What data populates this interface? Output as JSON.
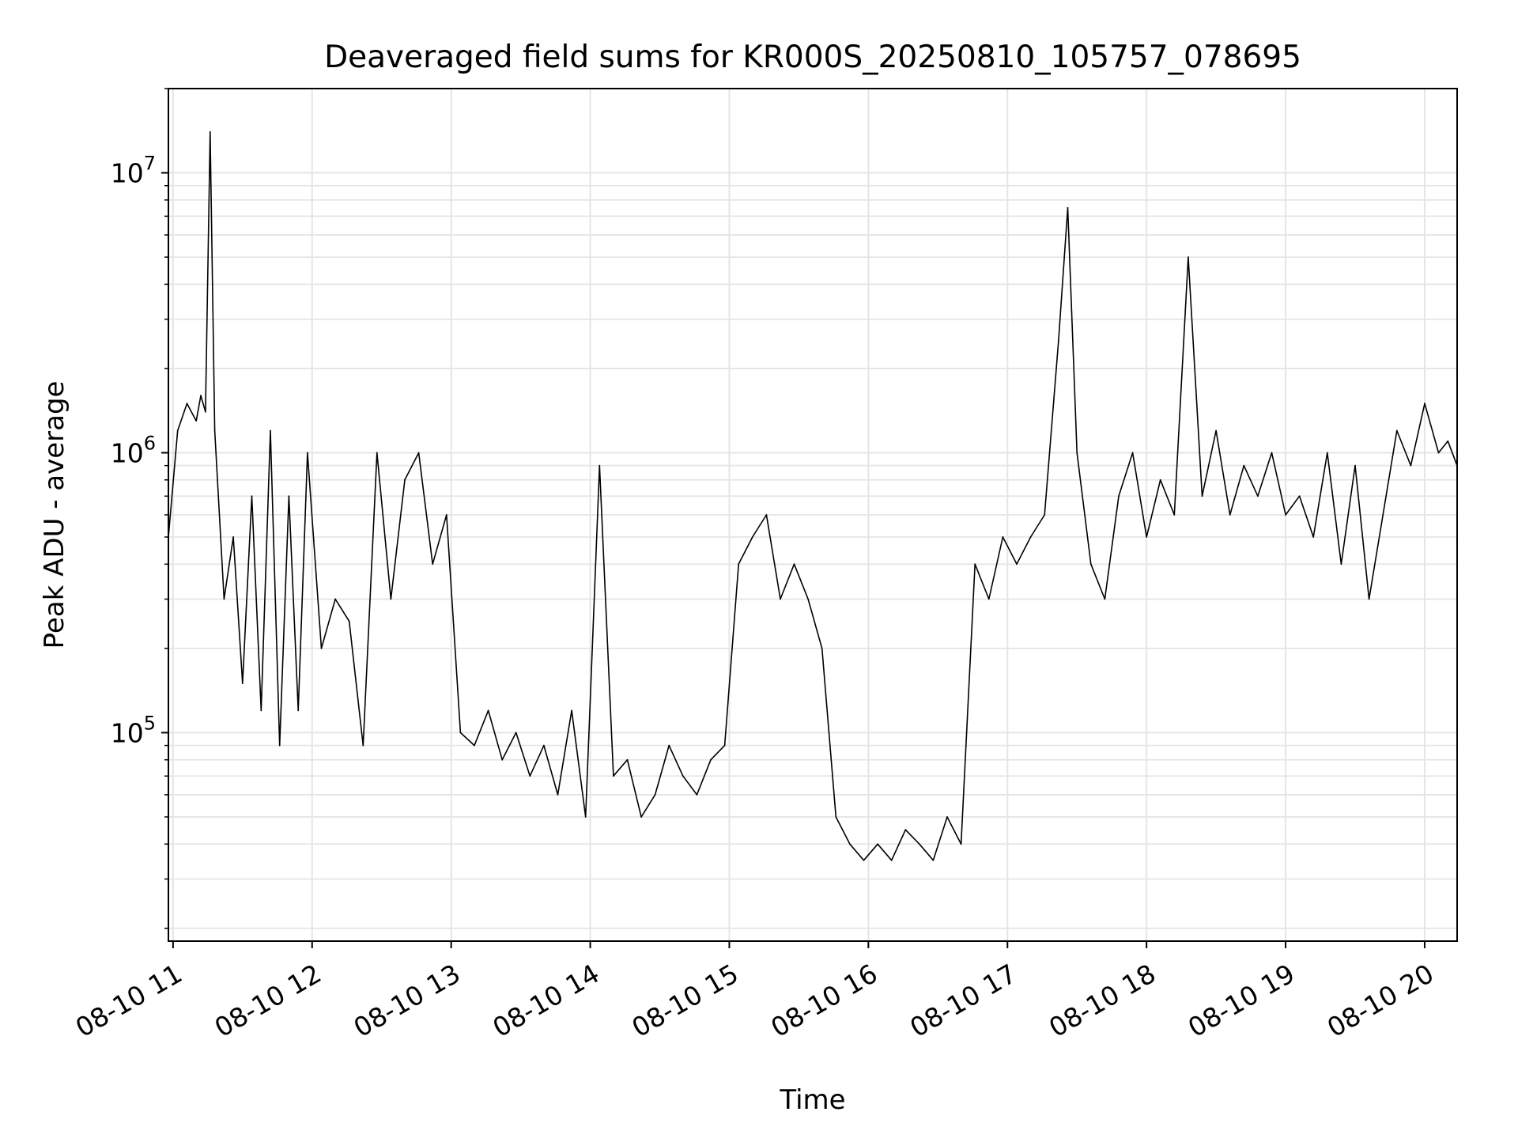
{
  "chart_data": {
    "type": "line",
    "title": "Deaveraged field sums for KR000S_20250810_105757_078695",
    "xlabel": "Time",
    "ylabel": "Peak ADU - average",
    "yscale": "log",
    "ylim": [
      18000,
      20000000
    ],
    "xlim": [
      "2025-08-10 10:58",
      "2025-08-10 20:14"
    ],
    "grid": true,
    "legend": "none",
    "colors": {
      "line": "#000000",
      "grid": "#e5e5e5",
      "axes": "#000000",
      "background": "#ffffff"
    },
    "x_ticks": [
      {
        "value": "2025-08-10 11:00",
        "label": "08-10 11"
      },
      {
        "value": "2025-08-10 12:00",
        "label": "08-10 12"
      },
      {
        "value": "2025-08-10 13:00",
        "label": "08-10 13"
      },
      {
        "value": "2025-08-10 14:00",
        "label": "08-10 14"
      },
      {
        "value": "2025-08-10 15:00",
        "label": "08-10 15"
      },
      {
        "value": "2025-08-10 16:00",
        "label": "08-10 16"
      },
      {
        "value": "2025-08-10 17:00",
        "label": "08-10 17"
      },
      {
        "value": "2025-08-10 18:00",
        "label": "08-10 18"
      },
      {
        "value": "2025-08-10 19:00",
        "label": "08-10 19"
      },
      {
        "value": "2025-08-10 20:00",
        "label": "08-10 20"
      }
    ],
    "y_ticks": [
      {
        "value": 100000,
        "base": "10",
        "exp": "5"
      },
      {
        "value": 1000000,
        "base": "10",
        "exp": "6"
      },
      {
        "value": 10000000,
        "base": "10",
        "exp": "7"
      }
    ],
    "series": [
      {
        "x": [
          "2025-08-10 10:58",
          "2025-08-10 11:02",
          "2025-08-10 11:06",
          "2025-08-10 11:10",
          "2025-08-10 11:12",
          "2025-08-10 11:14",
          "2025-08-10 11:16",
          "2025-08-10 11:18",
          "2025-08-10 11:22",
          "2025-08-10 11:26",
          "2025-08-10 11:30",
          "2025-08-10 11:34",
          "2025-08-10 11:38",
          "2025-08-10 11:42",
          "2025-08-10 11:46",
          "2025-08-10 11:50",
          "2025-08-10 11:54",
          "2025-08-10 11:58",
          "2025-08-10 12:04",
          "2025-08-10 12:10",
          "2025-08-10 12:16",
          "2025-08-10 12:22",
          "2025-08-10 12:28",
          "2025-08-10 12:34",
          "2025-08-10 12:40",
          "2025-08-10 12:46",
          "2025-08-10 12:52",
          "2025-08-10 12:58",
          "2025-08-10 13:04",
          "2025-08-10 13:10",
          "2025-08-10 13:16",
          "2025-08-10 13:22",
          "2025-08-10 13:28",
          "2025-08-10 13:34",
          "2025-08-10 13:40",
          "2025-08-10 13:46",
          "2025-08-10 13:52",
          "2025-08-10 13:58",
          "2025-08-10 14:04",
          "2025-08-10 14:10",
          "2025-08-10 14:16",
          "2025-08-10 14:22",
          "2025-08-10 14:28",
          "2025-08-10 14:34",
          "2025-08-10 14:40",
          "2025-08-10 14:46",
          "2025-08-10 14:52",
          "2025-08-10 14:58",
          "2025-08-10 15:04",
          "2025-08-10 15:10",
          "2025-08-10 15:16",
          "2025-08-10 15:22",
          "2025-08-10 15:28",
          "2025-08-10 15:34",
          "2025-08-10 15:40",
          "2025-08-10 15:46",
          "2025-08-10 15:52",
          "2025-08-10 15:58",
          "2025-08-10 16:04",
          "2025-08-10 16:10",
          "2025-08-10 16:16",
          "2025-08-10 16:22",
          "2025-08-10 16:28",
          "2025-08-10 16:34",
          "2025-08-10 16:40",
          "2025-08-10 16:46",
          "2025-08-10 16:52",
          "2025-08-10 16:58",
          "2025-08-10 17:04",
          "2025-08-10 17:10",
          "2025-08-10 17:16",
          "2025-08-10 17:22",
          "2025-08-10 17:26",
          "2025-08-10 17:30",
          "2025-08-10 17:36",
          "2025-08-10 17:42",
          "2025-08-10 17:48",
          "2025-08-10 17:54",
          "2025-08-10 18:00",
          "2025-08-10 18:06",
          "2025-08-10 18:12",
          "2025-08-10 18:18",
          "2025-08-10 18:24",
          "2025-08-10 18:30",
          "2025-08-10 18:36",
          "2025-08-10 18:42",
          "2025-08-10 18:48",
          "2025-08-10 18:54",
          "2025-08-10 19:00",
          "2025-08-10 19:06",
          "2025-08-10 19:12",
          "2025-08-10 19:18",
          "2025-08-10 19:24",
          "2025-08-10 19:30",
          "2025-08-10 19:36",
          "2025-08-10 19:42",
          "2025-08-10 19:48",
          "2025-08-10 19:54",
          "2025-08-10 20:00",
          "2025-08-10 20:06",
          "2025-08-10 20:10",
          "2025-08-10 20:14"
        ],
        "y": [
          500000,
          1200000,
          1500000,
          1300000,
          1600000,
          1400000,
          14000000,
          1200000,
          300000,
          500000,
          150000,
          700000,
          120000,
          1200000,
          90000,
          700000,
          120000,
          1000000,
          200000,
          300000,
          250000,
          90000,
          1000000,
          300000,
          800000,
          1000000,
          400000,
          600000,
          100000,
          90000,
          120000,
          80000,
          100000,
          70000,
          90000,
          60000,
          120000,
          50000,
          900000,
          70000,
          80000,
          50000,
          60000,
          90000,
          70000,
          60000,
          80000,
          90000,
          400000,
          500000,
          600000,
          300000,
          400000,
          300000,
          200000,
          50000,
          40000,
          35000,
          40000,
          35000,
          45000,
          40000,
          35000,
          50000,
          40000,
          400000,
          300000,
          500000,
          400000,
          500000,
          600000,
          2500000,
          7500000,
          1000000,
          400000,
          300000,
          700000,
          1000000,
          500000,
          800000,
          600000,
          5000000,
          700000,
          1200000,
          600000,
          900000,
          700000,
          1000000,
          600000,
          700000,
          500000,
          1000000,
          400000,
          900000,
          300000,
          600000,
          1200000,
          900000,
          1500000,
          1000000,
          1100000,
          900000
        ]
      }
    ]
  }
}
